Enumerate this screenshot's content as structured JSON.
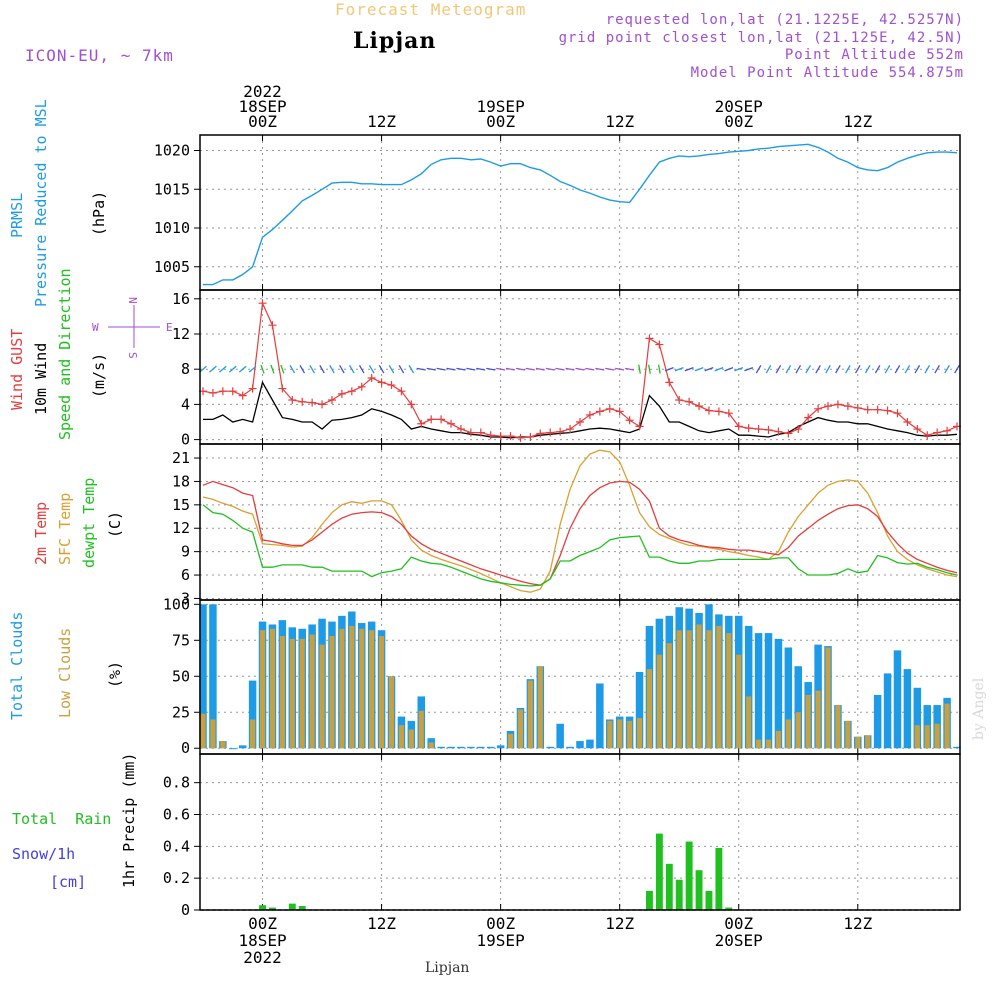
{
  "header": {
    "subtitle": "Forecast Meteogram",
    "location": "Lipjan",
    "model": "ICON-EU, ~ 7km",
    "requested": "requested lon,lat (21.1225E, 42.5257N)",
    "gridpoint": "grid point closest lon,lat (21.125E, 42.5N)",
    "altitude": "Point Altitude 552m",
    "model_altitude": "Model Point Altitude 554.875m",
    "footer_location": "Lipjan",
    "watermark": "by Angel"
  },
  "colors": {
    "pressure": "#1e9be6",
    "gust": "#e63c3c",
    "wind": "#000000",
    "direction": "#20c020",
    "temp2m": "#e63c3c",
    "sfc": "#dca030",
    "dewpt": "#20c020",
    "total_clouds": "#1e9be6",
    "low_clouds": "#c8a040",
    "rain": "#20c020",
    "snow": "#4040e0",
    "purple": "#a050d0"
  },
  "time_axis": {
    "top_labels": [
      {
        "t": 6,
        "lines": [
          "2022",
          "18SEP",
          "00Z"
        ]
      },
      {
        "t": 18,
        "lines": [
          "12Z"
        ]
      },
      {
        "t": 30,
        "lines": [
          "19SEP",
          "00Z"
        ]
      },
      {
        "t": 42,
        "lines": [
          "12Z"
        ]
      },
      {
        "t": 54,
        "lines": [
          "20SEP",
          "00Z"
        ]
      },
      {
        "t": 66,
        "lines": [
          "12Z"
        ]
      }
    ],
    "bottom_labels": [
      {
        "t": 6,
        "lines": [
          "00Z",
          "18SEP",
          "2022"
        ]
      },
      {
        "t": 18,
        "lines": [
          "12Z"
        ]
      },
      {
        "t": 30,
        "lines": [
          "00Z",
          "19SEP"
        ]
      },
      {
        "t": 42,
        "lines": [
          "12Z"
        ]
      },
      {
        "t": 54,
        "lines": [
          "00Z",
          "20SEP"
        ]
      },
      {
        "t": 66,
        "lines": [
          "12Z"
        ]
      }
    ]
  },
  "panel_labels": {
    "pressure": {
      "title1": "PRMSL",
      "title2": "Pressure Reduced to MSL",
      "unit": "(hPa)"
    },
    "wind": {
      "gust": "Wind GUST",
      "wind": "10m Wind",
      "dir": "Speed and Direction",
      "unit": "(m/s)",
      "compass_n": "N",
      "compass_s": "S",
      "compass_w": "W",
      "compass_e": "E"
    },
    "temp": {
      "t2m": "2m Temp",
      "sfc": "SFC Temp",
      "dew": "dewpt Temp",
      "unit": "(C)"
    },
    "clouds": {
      "total": "Total Clouds",
      "low": "Low Clouds",
      "unit": "(%)"
    },
    "precip": {
      "rain": "Total  Rain",
      "snow": "Snow/1h",
      "snow_unit": "[cm]",
      "ylabel": "1hr Precip (mm)"
    }
  },
  "chart_data": [
    {
      "type": "line",
      "name": "pressure",
      "x": [
        0,
        1,
        2,
        3,
        4,
        5,
        6,
        7,
        8,
        9,
        10,
        11,
        12,
        13,
        14,
        15,
        16,
        17,
        18,
        19,
        20,
        21,
        22,
        23,
        24,
        25,
        26,
        27,
        28,
        29,
        30,
        31,
        32,
        33,
        34,
        35,
        36,
        37,
        38,
        39,
        40,
        41,
        42,
        43,
        44,
        45,
        46,
        47,
        48,
        49,
        50,
        51,
        52,
        53,
        54,
        55,
        56,
        57,
        58,
        59,
        60,
        61,
        62,
        63,
        64,
        65,
        66,
        67,
        68,
        69,
        70,
        71,
        72,
        73,
        74,
        75,
        76
      ],
      "y": [
        1002.7,
        1002.7,
        1003.3,
        1003.3,
        1004.0,
        1005.0,
        1008.8,
        1009.8,
        1011.0,
        1012.2,
        1013.5,
        1014.2,
        1015.0,
        1015.8,
        1015.9,
        1015.9,
        1015.7,
        1015.7,
        1015.6,
        1015.6,
        1015.6,
        1016.2,
        1017.0,
        1018.2,
        1018.8,
        1019.0,
        1019.0,
        1018.8,
        1018.9,
        1018.5,
        1018.0,
        1018.3,
        1018.3,
        1017.8,
        1017.5,
        1016.8,
        1016.0,
        1015.5,
        1014.9,
        1014.5,
        1014.0,
        1013.6,
        1013.4,
        1013.3,
        1015.0,
        1016.8,
        1018.5,
        1019.0,
        1019.3,
        1019.2,
        1019.3,
        1019.5,
        1019.6,
        1019.8,
        1019.9,
        1020.0,
        1020.2,
        1020.3,
        1020.5,
        1020.6,
        1020.7,
        1020.8,
        1020.4,
        1019.8,
        1019.0,
        1018.5,
        1017.8,
        1017.5,
        1017.4,
        1017.8,
        1018.5,
        1019.0,
        1019.4,
        1019.7,
        1019.8,
        1019.8,
        1019.7
      ],
      "ylim": [
        1002,
        1022
      ],
      "yticks": [
        1005,
        1010,
        1015,
        1020
      ]
    },
    {
      "type": "line",
      "name": "wind",
      "x": [
        0,
        1,
        2,
        3,
        4,
        5,
        6,
        7,
        8,
        9,
        10,
        11,
        12,
        13,
        14,
        15,
        16,
        17,
        18,
        19,
        20,
        21,
        22,
        23,
        24,
        25,
        26,
        27,
        28,
        29,
        30,
        31,
        32,
        33,
        34,
        35,
        36,
        37,
        38,
        39,
        40,
        41,
        42,
        43,
        44,
        45,
        46,
        47,
        48,
        49,
        50,
        51,
        52,
        53,
        54,
        55,
        56,
        57,
        58,
        59,
        60,
        61,
        62,
        63,
        64,
        65,
        66,
        67,
        68,
        69,
        70,
        71,
        72,
        73,
        74,
        75,
        76
      ],
      "gust": [
        5.5,
        5.3,
        5.5,
        5.5,
        5.0,
        5.8,
        15.5,
        13.0,
        5.8,
        4.5,
        4.3,
        4.2,
        4.0,
        4.5,
        5.2,
        5.5,
        6.0,
        7.0,
        6.5,
        6.2,
        5.5,
        4.0,
        1.8,
        2.3,
        2.3,
        1.8,
        1.2,
        0.8,
        0.8,
        0.5,
        0.4,
        0.4,
        0.2,
        0.3,
        0.7,
        0.8,
        0.9,
        1.2,
        2.0,
        2.8,
        3.2,
        3.5,
        3.2,
        2.2,
        1.5,
        11.5,
        10.8,
        6.5,
        4.5,
        4.3,
        3.8,
        3.3,
        3.2,
        3.0,
        1.5,
        1.3,
        1.2,
        1.1,
        0.9,
        0.7,
        1.2,
        2.5,
        3.5,
        3.8,
        4.0,
        3.8,
        3.6,
        3.4,
        3.4,
        3.3,
        3.0,
        2.0,
        1.2,
        0.5,
        0.8,
        1.0,
        1.5
      ],
      "speed": [
        2.3,
        2.3,
        2.8,
        2.0,
        2.3,
        2.0,
        6.5,
        4.5,
        2.5,
        2.3,
        2.0,
        2.0,
        1.2,
        2.2,
        2.3,
        2.5,
        2.8,
        3.5,
        3.2,
        2.8,
        2.3,
        1.2,
        1.5,
        1.2,
        1.0,
        0.8,
        0.8,
        0.6,
        0.5,
        0.3,
        0.3,
        0.2,
        0.3,
        0.3,
        0.5,
        0.6,
        0.7,
        0.8,
        1.0,
        1.2,
        1.3,
        1.2,
        1.0,
        0.8,
        1.2,
        5.0,
        3.8,
        2.0,
        2.0,
        1.5,
        1.0,
        0.8,
        1.0,
        1.2,
        0.5,
        0.5,
        0.4,
        0.3,
        0.6,
        0.8,
        1.5,
        2.0,
        2.5,
        2.2,
        2.0,
        2.0,
        1.8,
        1.8,
        1.5,
        1.2,
        1.0,
        0.8,
        0.5,
        0.4,
        0.5,
        0.5,
        0.6
      ],
      "ylim": [
        -0.5,
        17
      ],
      "yticks": [
        0,
        4,
        8,
        12,
        16
      ]
    },
    {
      "type": "line",
      "name": "temperature",
      "x": [
        0,
        1,
        2,
        3,
        4,
        5,
        6,
        7,
        8,
        9,
        10,
        11,
        12,
        13,
        14,
        15,
        16,
        17,
        18,
        19,
        20,
        21,
        22,
        23,
        24,
        25,
        26,
        27,
        28,
        29,
        30,
        31,
        32,
        33,
        34,
        35,
        36,
        37,
        38,
        39,
        40,
        41,
        42,
        43,
        44,
        45,
        46,
        47,
        48,
        49,
        50,
        51,
        52,
        53,
        54,
        55,
        56,
        57,
        58,
        59,
        60,
        61,
        62,
        63,
        64,
        65,
        66,
        67,
        68,
        69,
        70,
        71,
        72,
        73,
        74,
        75,
        76
      ],
      "t2m": [
        17.5,
        18.0,
        17.6,
        17.2,
        16.5,
        16.2,
        10.5,
        10.3,
        10.0,
        9.8,
        9.8,
        10.5,
        11.5,
        12.5,
        13.3,
        13.8,
        14.0,
        14.1,
        14.0,
        13.5,
        12.5,
        11.0,
        10.0,
        9.3,
        8.8,
        8.3,
        7.8,
        7.3,
        6.8,
        6.4,
        6.0,
        5.6,
        5.2,
        4.9,
        4.7,
        5.5,
        8.5,
        12.0,
        14.5,
        16.2,
        17.2,
        17.8,
        18.0,
        17.9,
        17.0,
        15.5,
        12.0,
        11.0,
        10.5,
        10.2,
        9.8,
        9.6,
        9.5,
        9.3,
        9.2,
        9.2,
        9.0,
        8.8,
        8.6,
        9.5,
        11.0,
        12.0,
        13.0,
        13.8,
        14.5,
        14.9,
        15.0,
        14.5,
        13.5,
        11.5,
        10.0,
        8.8,
        8.0,
        7.5,
        7.0,
        6.6,
        6.3
      ],
      "sfc": [
        16.0,
        15.7,
        15.2,
        14.8,
        14.2,
        13.8,
        10.0,
        9.9,
        9.8,
        9.6,
        9.7,
        10.8,
        12.5,
        14.0,
        15.0,
        15.4,
        15.2,
        15.5,
        15.5,
        15.0,
        13.0,
        10.5,
        9.2,
        8.5,
        8.0,
        7.6,
        7.2,
        6.7,
        6.2,
        5.6,
        5.0,
        4.5,
        4.0,
        3.8,
        4.2,
        6.5,
        12.5,
        17.0,
        20.0,
        21.5,
        22.0,
        21.8,
        20.5,
        17.5,
        14.0,
        12.2,
        11.2,
        10.7,
        10.2,
        9.8,
        9.7,
        9.5,
        9.3,
        9.0,
        8.8,
        8.5,
        8.3,
        8.0,
        9.0,
        11.5,
        13.5,
        15.0,
        16.5,
        17.5,
        18.0,
        18.2,
        18.0,
        16.5,
        14.0,
        11.0,
        9.0,
        8.0,
        7.3,
        6.8,
        6.4,
        6.0,
        5.8
      ],
      "dewpt": [
        15.0,
        14.0,
        13.8,
        13.0,
        12.0,
        11.5,
        7.0,
        7.0,
        7.3,
        7.3,
        7.3,
        7.0,
        7.0,
        6.5,
        6.5,
        6.5,
        6.5,
        5.8,
        6.3,
        6.5,
        6.8,
        8.3,
        7.8,
        7.5,
        7.4,
        7.0,
        6.5,
        6.0,
        5.5,
        5.2,
        5.0,
        4.8,
        4.7,
        4.6,
        4.7,
        5.5,
        7.8,
        7.8,
        8.5,
        9.0,
        9.5,
        10.5,
        10.8,
        10.9,
        11.0,
        8.3,
        8.3,
        7.8,
        7.5,
        7.5,
        7.8,
        7.8,
        8.0,
        8.0,
        8.0,
        8.0,
        8.0,
        8.0,
        8.2,
        8.2,
        6.8,
        6.0,
        6.0,
        6.0,
        6.2,
        6.8,
        6.3,
        6.5,
        8.5,
        8.2,
        7.6,
        7.4,
        7.5,
        7.0,
        6.7,
        6.3,
        6.0
      ],
      "ylim": [
        2.8,
        22.8
      ],
      "yticks": [
        3,
        6,
        9,
        12,
        15,
        18,
        21
      ]
    },
    {
      "type": "bar",
      "name": "clouds",
      "x": [
        0,
        1,
        2,
        3,
        4,
        5,
        6,
        7,
        8,
        9,
        10,
        11,
        12,
        13,
        14,
        15,
        16,
        17,
        18,
        19,
        20,
        21,
        22,
        23,
        24,
        25,
        26,
        27,
        28,
        29,
        30,
        31,
        32,
        33,
        34,
        35,
        36,
        37,
        38,
        39,
        40,
        41,
        42,
        43,
        44,
        45,
        46,
        47,
        48,
        49,
        50,
        51,
        52,
        53,
        54,
        55,
        56,
        57,
        58,
        59,
        60,
        61,
        62,
        63,
        64,
        65,
        66,
        67,
        68,
        69,
        70,
        71,
        72,
        73,
        74,
        75,
        76
      ],
      "total": [
        100,
        100,
        5,
        0,
        2,
        47,
        88,
        86,
        89,
        84,
        83,
        86,
        90,
        88,
        92,
        95,
        87,
        88,
        82,
        50,
        22,
        19,
        36,
        7,
        1,
        1,
        1,
        1,
        1,
        1,
        2,
        12,
        28,
        48,
        57,
        1,
        17,
        1,
        5,
        6,
        45,
        20,
        22,
        22,
        53,
        85,
        90,
        92,
        98,
        97,
        94,
        100,
        93,
        92,
        92,
        85,
        80,
        80,
        76,
        70,
        57,
        46,
        72,
        71,
        30,
        19,
        8,
        9,
        37,
        52,
        68,
        55,
        42,
        30,
        30,
        35,
        1
      ],
      "low": [
        24,
        20,
        5,
        0,
        0,
        20,
        82,
        83,
        78,
        76,
        76,
        79,
        72,
        78,
        83,
        85,
        83,
        82,
        78,
        50,
        16,
        13,
        26,
        4,
        0,
        0,
        0,
        0,
        0,
        0,
        0,
        10,
        27,
        47,
        57,
        0,
        0,
        0,
        0,
        0,
        0,
        19,
        20,
        19,
        21,
        55,
        65,
        73,
        82,
        82,
        86,
        82,
        85,
        80,
        65,
        36,
        6,
        6,
        12,
        20,
        25,
        37,
        40,
        70,
        30,
        19,
        8,
        9,
        0,
        0,
        0,
        0,
        16,
        16,
        17,
        31,
        0
      ],
      "ylim": [
        -4,
        103
      ],
      "yticks": [
        0,
        25,
        50,
        75,
        100
      ]
    },
    {
      "type": "bar",
      "name": "precip",
      "x": [
        0,
        1,
        2,
        3,
        4,
        5,
        6,
        7,
        8,
        9,
        10,
        11,
        12,
        13,
        14,
        15,
        16,
        17,
        18,
        19,
        20,
        21,
        22,
        23,
        24,
        25,
        26,
        27,
        28,
        29,
        30,
        31,
        32,
        33,
        34,
        35,
        36,
        37,
        38,
        39,
        40,
        41,
        42,
        43,
        44,
        45,
        46,
        47,
        48,
        49,
        50,
        51,
        52,
        53,
        54,
        55,
        56,
        57,
        58,
        59,
        60,
        61,
        62,
        63,
        64,
        65,
        66,
        67,
        68,
        69,
        70,
        71,
        72,
        73,
        74,
        75,
        76
      ],
      "rain": [
        0,
        0,
        0,
        0,
        0,
        0,
        0.03,
        0.015,
        0,
        0.04,
        0.025,
        0,
        0,
        0,
        0,
        0,
        0,
        0,
        0,
        0,
        0,
        0,
        0,
        0,
        0,
        0,
        0,
        0,
        0,
        0,
        0,
        0,
        0,
        0,
        0,
        0,
        0,
        0,
        0,
        0,
        0,
        0,
        0,
        0,
        0,
        0.12,
        0.48,
        0.29,
        0.19,
        0.43,
        0.25,
        0.12,
        0.39,
        0.015,
        0,
        0,
        0,
        0,
        0,
        0,
        0,
        0,
        0,
        0,
        0,
        0,
        0,
        0,
        0,
        0,
        0,
        0,
        0,
        0,
        0,
        0,
        0
      ],
      "ylim": [
        0,
        0.98
      ],
      "yticks": [
        0,
        0.2,
        0.4,
        0.6,
        0.8
      ]
    }
  ]
}
